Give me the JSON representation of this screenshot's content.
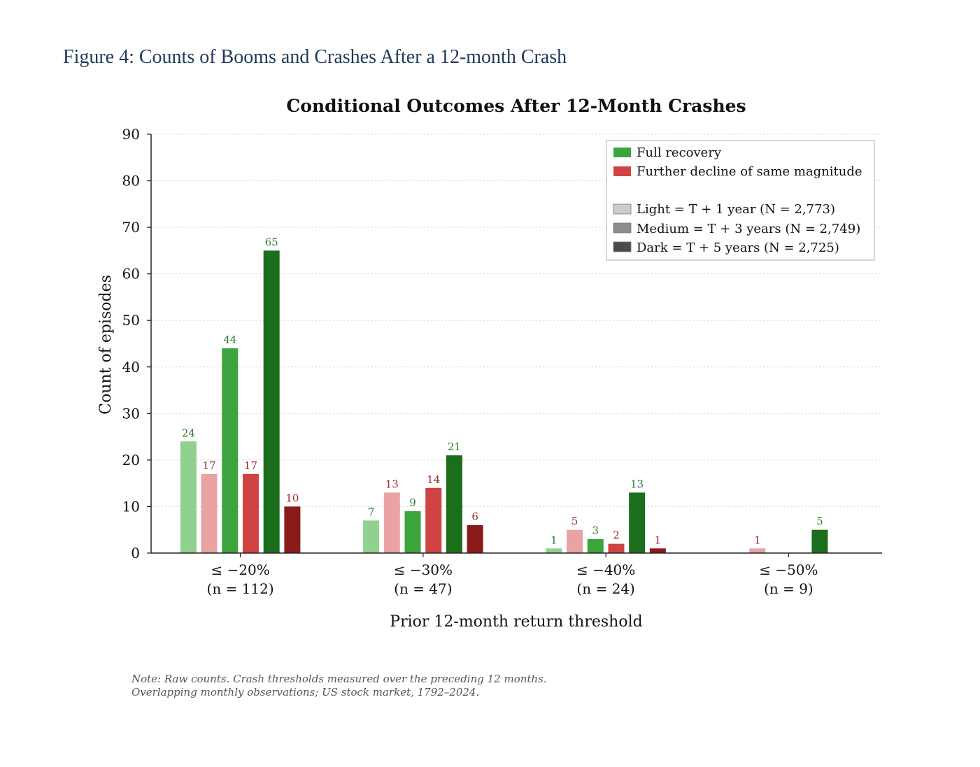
{
  "figure_caption": "Figure 4: Counts of Booms and Crashes After a 12-month Crash",
  "note_lines": [
    "Note: Raw counts. Crash thresholds measured over the preceding 12 months.",
    "Overlapping monthly observations; US stock market, 1792–2024."
  ],
  "colors": {
    "green": [
      "#90d190",
      "#3ca43c",
      "#1b6e1b"
    ],
    "red": [
      "#e9a3a3",
      "#cf4343",
      "#8b1a1a"
    ],
    "green_label": "#2e7d2e",
    "red_label": "#9a2b2b",
    "shade": [
      "#cccccc",
      "#8c8c8c",
      "#4a4a4a"
    ]
  },
  "chart_data": {
    "type": "bar",
    "title": "Conditional Outcomes After 12-Month Crashes",
    "xlabel": "Prior 12-month return threshold",
    "ylabel": "Count of episodes",
    "ylim": [
      0,
      90
    ],
    "yticks": [
      0,
      10,
      20,
      30,
      40,
      50,
      60,
      70,
      80,
      90
    ],
    "grid": "horizontal dotted",
    "legend_position": "top-right",
    "categories": [
      [
        "≤ −20%",
        "(n = 112)"
      ],
      [
        "≤ −30%",
        "(n = 47)"
      ],
      [
        "≤ −40%",
        "(n = 24)"
      ],
      [
        "≤ −50%",
        "(n = 9)"
      ]
    ],
    "series": [
      {
        "outcome": "recovery",
        "horizon": 0,
        "values": [
          24,
          7,
          1,
          0
        ]
      },
      {
        "outcome": "decline",
        "horizon": 0,
        "values": [
          17,
          13,
          5,
          1
        ]
      },
      {
        "outcome": "recovery",
        "horizon": 1,
        "values": [
          44,
          9,
          3,
          0
        ]
      },
      {
        "outcome": "decline",
        "horizon": 1,
        "values": [
          17,
          14,
          2,
          0
        ]
      },
      {
        "outcome": "recovery",
        "horizon": 2,
        "values": [
          65,
          21,
          13,
          5
        ]
      },
      {
        "outcome": "decline",
        "horizon": 2,
        "values": [
          10,
          6,
          1,
          0
        ]
      }
    ],
    "legend": {
      "outcomes": [
        {
          "label": "Full recovery",
          "color_key": "green"
        },
        {
          "label": "Further decline of same magnitude",
          "color_key": "red"
        }
      ],
      "shades": [
        "Light = T + 1 year (N = 2,773)",
        "Medium = T + 3 years (N = 2,749)",
        "Dark = T + 5 years (N = 2,725)"
      ]
    }
  }
}
